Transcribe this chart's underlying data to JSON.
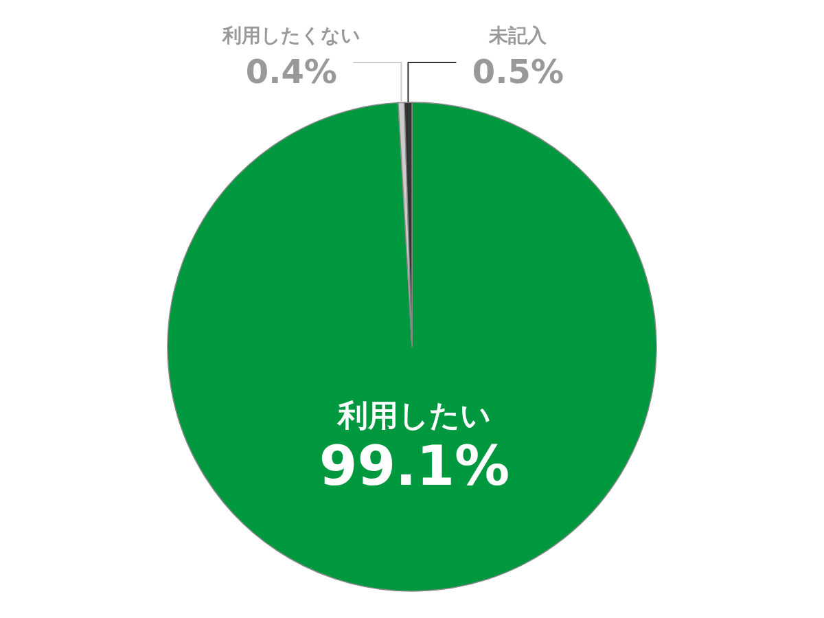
{
  "chart_data": {
    "type": "pie",
    "categories": [
      "利用したい",
      "利用したくない",
      "未記入"
    ],
    "values": [
      99.1,
      0.4,
      0.5
    ],
    "colors": [
      "#00983f",
      "#cccccc",
      "#333333"
    ],
    "value_labels": [
      "99.1%",
      "0.4%",
      "0.5%"
    ]
  }
}
